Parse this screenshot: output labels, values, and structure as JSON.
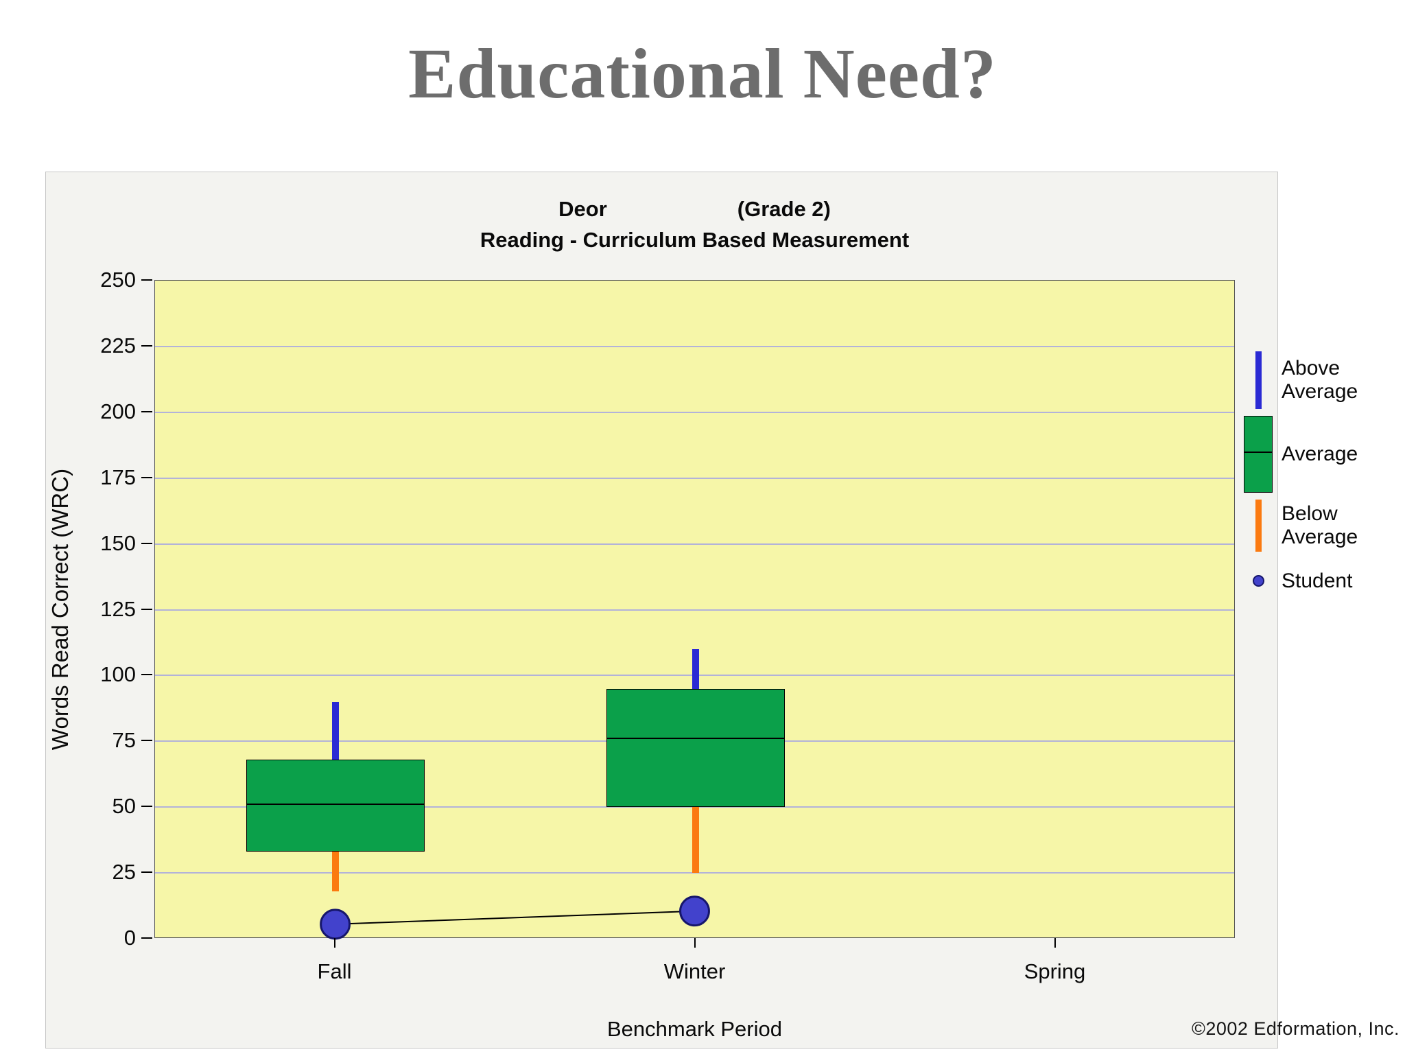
{
  "slide": {
    "title": "Educational Need?"
  },
  "chart_data": {
    "type": "boxplot",
    "title_left": "Deor",
    "title_right": "(Grade 2)",
    "subtitle": "Reading - Curriculum Based Measurement",
    "xlabel": "Benchmark Period",
    "ylabel": "Words Read Correct (WRC)",
    "ylim": [
      0,
      250
    ],
    "yticks": [
      0,
      25,
      50,
      75,
      100,
      125,
      150,
      175,
      200,
      225,
      250
    ],
    "grid": "horizontal",
    "categories": [
      "Fall",
      "Winter",
      "Spring"
    ],
    "boxes": [
      {
        "category": "Fall",
        "whisker_low": 18,
        "q1": 33,
        "median": 51,
        "q3": 68,
        "whisker_high": 90
      },
      {
        "category": "Winter",
        "whisker_low": 25,
        "q1": 50,
        "median": 76,
        "q3": 95,
        "whisker_high": 110
      }
    ],
    "student_series": {
      "name": "Student",
      "points": [
        {
          "category": "Fall",
          "value": 5
        },
        {
          "category": "Winter",
          "value": 10
        }
      ]
    },
    "legend": [
      {
        "label": "Above Average",
        "swatch": "above-line"
      },
      {
        "label": "Average",
        "swatch": "box"
      },
      {
        "label": "Below Average",
        "swatch": "below-line"
      },
      {
        "label": "Student",
        "swatch": "dot"
      }
    ],
    "colors": {
      "box": "#0ba04a",
      "above": "#2a2ad4",
      "below": "#fb7a10",
      "student": "#4242cc",
      "plot_bg": "#f6f6a8",
      "grid": "#b3b3d9"
    },
    "copyright": "©2002 Edformation, Inc."
  }
}
